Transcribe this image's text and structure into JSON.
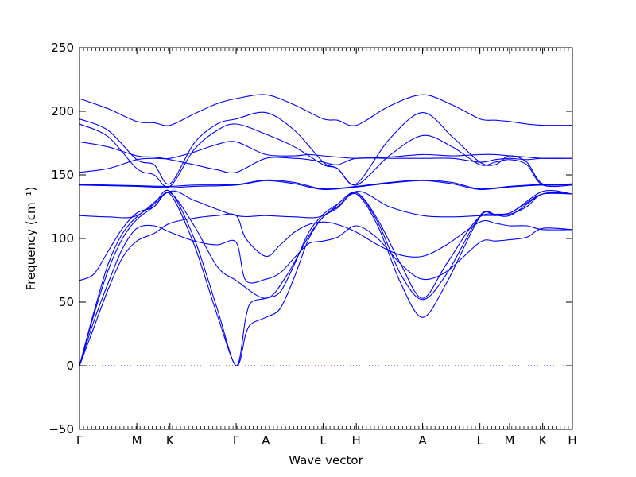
{
  "chart_data": {
    "type": "line",
    "xlabel": "Wave vector",
    "ylabel": "Frequency (cm⁻¹)",
    "ylim": [
      -50,
      250
    ],
    "yticks": [
      -50,
      0,
      50,
      100,
      150,
      200,
      250
    ],
    "x_ticks": [
      {
        "label": "Γ",
        "pos": 0
      },
      {
        "label": "M",
        "pos": 1
      },
      {
        "label": "K",
        "pos": 1.577
      },
      {
        "label": "Γ",
        "pos": 2.732
      },
      {
        "label": "A",
        "pos": 3.25
      },
      {
        "label": "L",
        "pos": 4.25
      },
      {
        "label": "H",
        "pos": 4.827
      },
      {
        "label": "A",
        "pos": 5.982
      },
      {
        "label": "L",
        "pos": 6.982
      },
      {
        "label": "M",
        "pos": 7.5
      },
      {
        "label": "K",
        "pos": 8.077
      },
      {
        "label": "H",
        "pos": 8.595
      }
    ],
    "xlim": [
      0,
      8.595
    ],
    "zero_line": true,
    "series_color": "#0000ff",
    "series": [
      {
        "x": [
          0,
          0.25,
          0.5,
          0.75,
          1,
          1.3,
          1.577,
          2.0,
          2.4,
          2.732,
          2.9,
          3.25,
          3.5,
          3.75,
          4.0,
          4.25,
          4.5,
          4.827,
          5.2,
          5.6,
          5.982,
          6.4,
          6.982,
          7.25,
          7.5,
          7.8,
          8.077,
          8.595
        ],
        "y": [
          0,
          30,
          60,
          85,
          98,
          104,
          112,
          116,
          118,
          118,
          100,
          86,
          95,
          105,
          111,
          113,
          111,
          105,
          95,
          87,
          86,
          95,
          113,
          112,
          110,
          110,
          107,
          107
        ]
      },
      {
        "x": [
          0,
          0.25,
          0.5,
          0.75,
          1,
          1.3,
          1.577,
          2.0,
          2.4,
          2.732,
          2.9,
          3.25,
          3.5,
          3.75,
          4.0,
          4.25,
          4.5,
          4.827,
          5.2,
          5.6,
          5.982,
          6.4,
          6.982,
          7.25,
          7.5,
          7.8,
          8.077,
          8.595
        ],
        "y": [
          0,
          35,
          65,
          92,
          108,
          110,
          105,
          98,
          95,
          97,
          67,
          68,
          73,
          85,
          96,
          98,
          101,
          110,
          100,
          80,
          68,
          74,
          97,
          98,
          99,
          101,
          108,
          107
        ]
      },
      {
        "x": [
          0,
          0.25,
          0.5,
          0.75,
          1,
          1.3,
          1.577,
          2.0,
          2.4,
          2.732,
          2.9,
          3.0,
          3.25,
          3.5,
          3.75,
          4.0,
          4.25,
          4.5,
          4.827,
          5.2,
          5.6,
          5.982,
          6.4,
          6.982,
          7.25,
          7.5,
          7.8,
          8.077,
          8.595
        ],
        "y": [
          0,
          40,
          75,
          100,
          115,
          125,
          135,
          95,
          40,
          0,
          25,
          33,
          38,
          45,
          70,
          100,
          117,
          125,
          135,
          110,
          65,
          38,
          65,
          117,
          118,
          119,
          125,
          135,
          135
        ]
      },
      {
        "x": [
          0,
          0.25,
          0.5,
          0.75,
          1,
          1.3,
          1.577,
          2.0,
          2.4,
          2.732,
          2.9,
          3.0,
          3.25,
          3.5,
          3.75,
          4.0,
          4.25,
          4.5,
          4.827,
          5.2,
          5.6,
          5.982,
          6.4,
          6.982,
          7.25,
          7.5,
          7.8,
          8.077,
          8.595
        ],
        "y": [
          0,
          42,
          80,
          104,
          117,
          127,
          137,
          100,
          45,
          0,
          38,
          50,
          53,
          58,
          80,
          105,
          119,
          127,
          136,
          113,
          72,
          52,
          72,
          118,
          119,
          120,
          128,
          135,
          135
        ]
      },
      {
        "x": [
          0,
          0.25,
          0.5,
          0.75,
          1,
          1.3,
          1.577,
          2.0,
          2.4,
          2.732,
          3.25,
          3.6,
          4.0,
          4.25,
          4.5,
          4.827,
          5.2,
          5.6,
          5.982,
          6.4,
          6.982,
          7.5,
          8.077,
          8.595
        ],
        "y": [
          67,
          72,
          90,
          108,
          120,
          125,
          136,
          110,
          78,
          67,
          53,
          70,
          102,
          117,
          124,
          136,
          115,
          80,
          53,
          80,
          117,
          118,
          135,
          135
        ]
      },
      {
        "x": [
          0,
          0.5,
          1,
          1.577,
          2.0,
          2.732,
          3.25,
          3.75,
          4.25,
          4.827,
          5.4,
          5.982,
          6.5,
          6.982,
          7.5,
          8.077,
          8.595
        ],
        "y": [
          118,
          117,
          118,
          137,
          130,
          118,
          118,
          117,
          118,
          137,
          125,
          118,
          117,
          118,
          120,
          137,
          135
        ]
      },
      {
        "x": [
          0,
          0.5,
          1,
          1.577,
          2.0,
          2.732,
          3.25,
          3.75,
          4.25,
          4.827,
          5.4,
          5.982,
          6.5,
          6.982,
          7.5,
          8.077,
          8.595
        ],
        "y": [
          142.5,
          142,
          141.5,
          141,
          142,
          142.5,
          146,
          144,
          139,
          141,
          144,
          146,
          144,
          139,
          141,
          142.5,
          142.5
        ]
      },
      {
        "x": [
          0,
          0.5,
          1,
          1.577,
          2.0,
          2.732,
          3.25,
          3.75,
          4.25,
          4.827,
          5.4,
          5.982,
          6.5,
          6.982,
          7.5,
          8.077,
          8.595
        ],
        "y": [
          142,
          141.5,
          141,
          140,
          141,
          142,
          145.5,
          143,
          138.5,
          140.5,
          143.5,
          145.5,
          143,
          138.5,
          140.5,
          142,
          142
        ]
      },
      {
        "x": [
          0,
          0.5,
          1,
          1.3,
          1.577,
          2.0,
          2.4,
          2.732,
          3.25,
          3.75,
          4.0,
          4.25,
          4.5,
          4.827,
          5.4,
          5.982,
          6.5,
          6.982,
          7.25,
          7.5,
          7.8,
          8.077,
          8.595
        ],
        "y": [
          152,
          155,
          162,
          163,
          163,
          168,
          174,
          176,
          166,
          165,
          166,
          165,
          164,
          163,
          164,
          166,
          165,
          166,
          166,
          165,
          164,
          163,
          163
        ]
      },
      {
        "x": [
          0,
          0.5,
          1,
          1.3,
          1.577,
          2.0,
          2.4,
          2.732,
          3.25,
          3.75,
          4.0,
          4.25,
          4.5,
          4.827,
          5.4,
          5.982,
          6.5,
          6.982,
          7.25,
          7.5,
          7.8,
          8.077,
          8.595
        ],
        "y": [
          176,
          172,
          165,
          164,
          162,
          158,
          154,
          152,
          163,
          163,
          162,
          160,
          158,
          163,
          163,
          163,
          163,
          160,
          162,
          163,
          162,
          163,
          163
        ]
      },
      {
        "x": [
          0,
          0.5,
          1,
          1.3,
          1.577,
          2.0,
          2.4,
          2.732,
          3.25,
          3.75,
          4.25,
          4.5,
          4.827,
          5.4,
          5.982,
          6.5,
          6.982,
          7.25,
          7.5,
          7.8,
          8.077,
          8.595
        ],
        "y": [
          190,
          180,
          155,
          150,
          141,
          170,
          185,
          190,
          182,
          172,
          158,
          155,
          142,
          165,
          181,
          172,
          158,
          160,
          162,
          158,
          142,
          142
        ]
      },
      {
        "x": [
          0,
          0.5,
          1,
          1.3,
          1.577,
          2.0,
          2.4,
          2.732,
          3.25,
          3.75,
          4.25,
          4.5,
          4.827,
          5.4,
          5.982,
          6.5,
          6.982,
          7.25,
          7.5,
          7.8,
          8.077,
          8.595
        ],
        "y": [
          194,
          185,
          162,
          158,
          143,
          175,
          190,
          194,
          199,
          185,
          160,
          155,
          143,
          178,
          199,
          180,
          160,
          158,
          165,
          160,
          143,
          143
        ]
      },
      {
        "x": [
          0,
          0.5,
          1,
          1.3,
          1.577,
          2.0,
          2.4,
          2.732,
          3.25,
          3.75,
          4.25,
          4.5,
          4.827,
          5.4,
          5.982,
          6.5,
          6.982,
          7.25,
          7.5,
          7.8,
          8.077,
          8.595
        ],
        "y": [
          210,
          202,
          192,
          191,
          189,
          198,
          206,
          210,
          213,
          205,
          194,
          193,
          189,
          204,
          213,
          205,
          194,
          193,
          192,
          190,
          189,
          189
        ]
      }
    ]
  }
}
